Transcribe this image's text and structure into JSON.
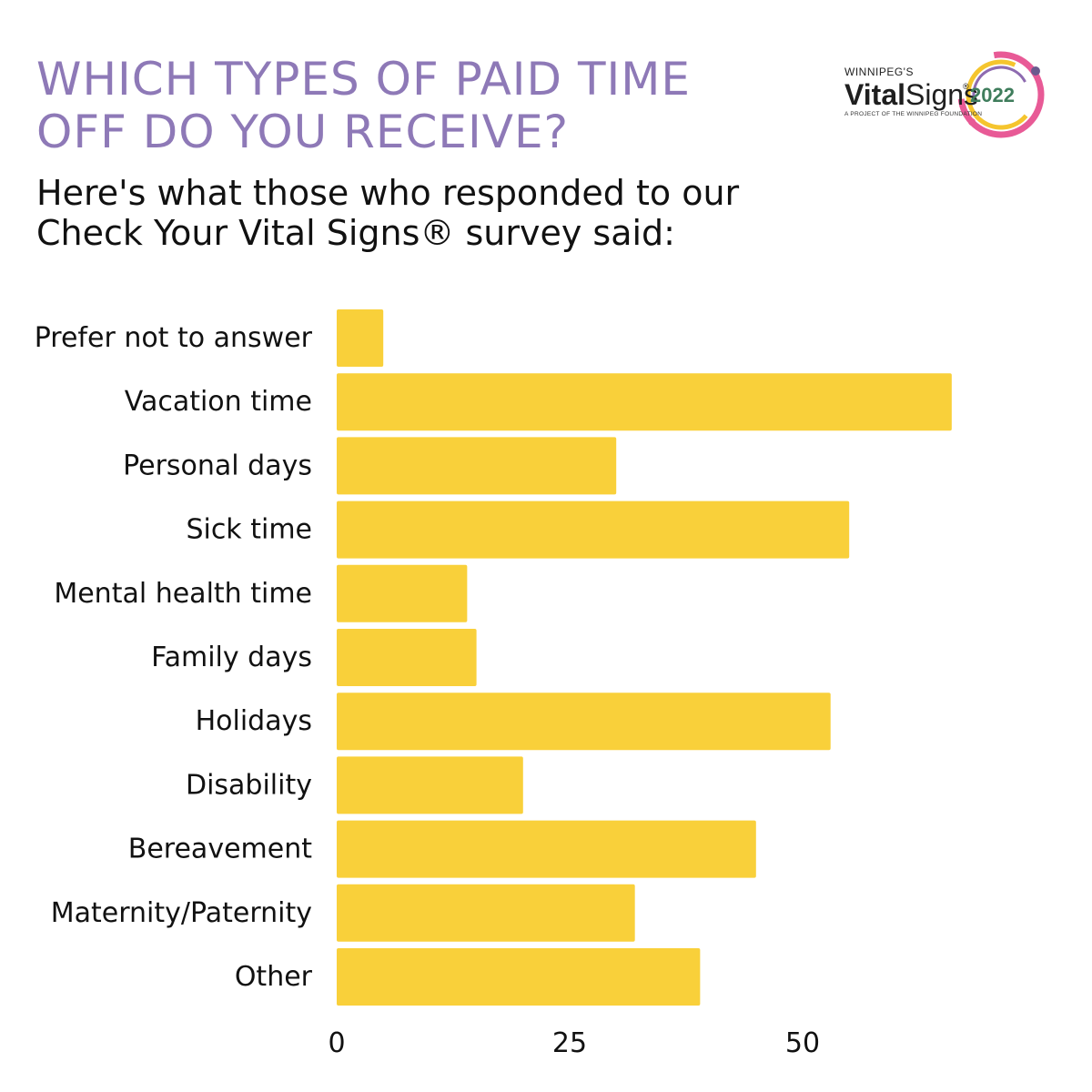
{
  "header": {
    "title": "WHICH TYPES OF PAID TIME OFF DO YOU RECEIVE?",
    "subtitle": "Here's what those who responded to our Check Your Vital Signs® survey said:"
  },
  "logo": {
    "pre": "WINNIPEG'S",
    "brand_bold": "Vital",
    "brand_light": "Signs",
    "reg": "®",
    "year": "2022",
    "tagline": "A PROJECT OF THE WINNIPEG FOUNDATION"
  },
  "colors": {
    "title": "#8e79b7",
    "bar": "#f9d03a",
    "ring_pink": "#e85a96",
    "ring_yellow": "#f5c52e",
    "ring_purple": "#8e6bb0",
    "year_green": "#3f7d5c"
  },
  "chart_data": {
    "type": "bar",
    "orientation": "horizontal",
    "categories": [
      "Prefer not to answer",
      "Vacation time",
      "Personal days",
      "Sick time",
      "Mental health time",
      "Family days",
      "Holidays",
      "Disability",
      "Bereavement",
      "Maternity/Paternity",
      "Other"
    ],
    "values": [
      5,
      66,
      30,
      55,
      14,
      15,
      53,
      20,
      45,
      32,
      39
    ],
    "xlim": [
      0,
      70
    ],
    "xticks": [
      0,
      25,
      50
    ],
    "tick_labels": [
      "0",
      "25",
      "50"
    ],
    "grid": false
  }
}
